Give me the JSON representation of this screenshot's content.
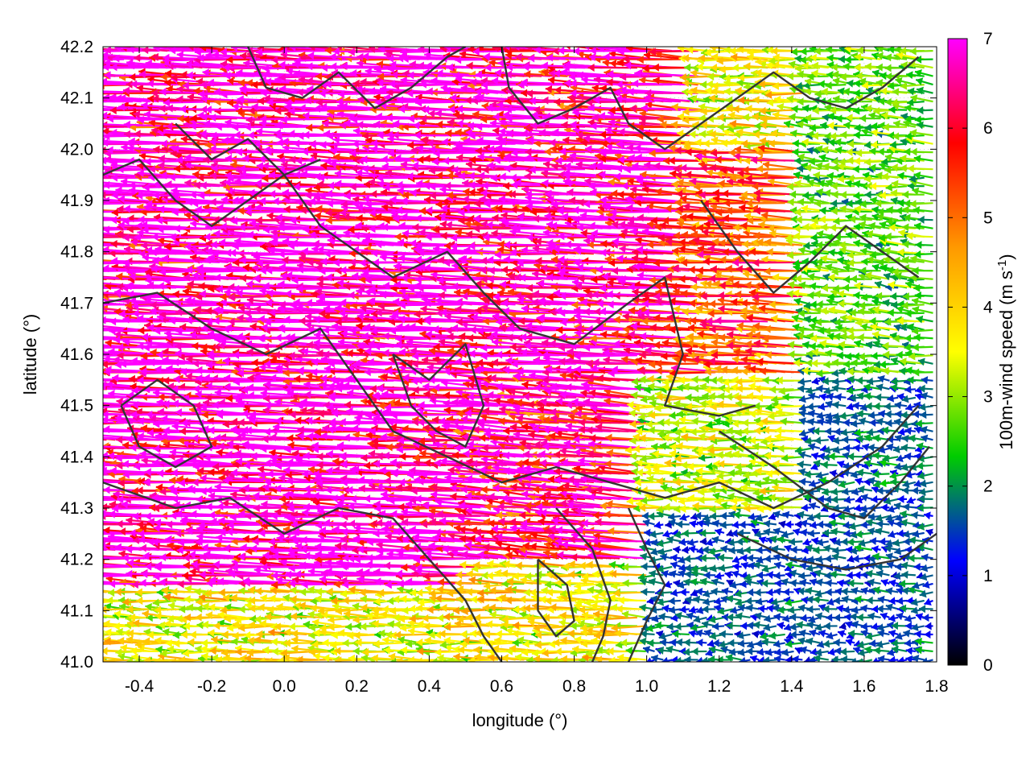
{
  "chart_data": {
    "type": "vector-field",
    "title": "",
    "xlabel": "longitude (°)",
    "ylabel": "latitude (°)",
    "xlim": [
      -0.5,
      1.8
    ],
    "ylim": [
      41.0,
      42.2
    ],
    "xticks": [
      "-0.4",
      "-0.2",
      "0.0",
      "0.2",
      "0.4",
      "0.6",
      "0.8",
      "1.0",
      "1.2",
      "1.4",
      "1.6",
      "1.8"
    ],
    "xtick_values": [
      -0.4,
      -0.2,
      0.0,
      0.2,
      0.4,
      0.6,
      0.8,
      1.0,
      1.2,
      1.4,
      1.6,
      1.8
    ],
    "yticks": [
      "41.0",
      "41.1",
      "41.2",
      "41.3",
      "41.4",
      "41.5",
      "41.6",
      "41.7",
      "41.8",
      "41.9",
      "42.0",
      "42.1",
      "42.2"
    ],
    "ytick_values": [
      41.0,
      41.1,
      41.2,
      41.3,
      41.4,
      41.5,
      41.6,
      41.7,
      41.8,
      41.9,
      42.0,
      42.1,
      42.2
    ],
    "grid": true,
    "colorbar": {
      "label": "100m-wind speed (m s",
      "label_sup": "-1",
      "label_end": ")",
      "range": [
        0,
        7
      ],
      "ticks": [
        "0",
        "1",
        "2",
        "3",
        "4",
        "5",
        "6",
        "7"
      ],
      "tick_values": [
        0,
        1,
        2,
        3,
        4,
        5,
        6,
        7
      ],
      "colors": [
        "#000000",
        "#0000ff",
        "#00cc00",
        "#ffff00",
        "#ff9900",
        "#ff0000",
        "#ff00ff"
      ]
    },
    "wind_field_regions": [
      {
        "lon_range": [
          -0.5,
          0.55
        ],
        "lat_range": [
          41.15,
          42.2
        ],
        "u": -6.8,
        "v": 0.25,
        "speed": 7
      },
      {
        "lon_range": [
          0.55,
          1.15
        ],
        "lat_range": [
          41.55,
          42.2
        ],
        "u": -6.5,
        "v": 0.3,
        "speed": 7
      },
      {
        "lon_range": [
          0.55,
          1.0
        ],
        "lat_range": [
          41.2,
          41.55
        ],
        "u": -6.2,
        "v": 0.5,
        "speed": 6.5
      },
      {
        "lon_range": [
          1.15,
          1.45
        ],
        "lat_range": [
          41.55,
          42.0
        ],
        "u": -5.2,
        "v": 0.3,
        "speed": 5.3
      },
      {
        "lon_range": [
          1.45,
          1.8
        ],
        "lat_range": [
          41.55,
          42.2
        ],
        "u": -2.6,
        "v": 0.2,
        "speed": 2.8
      },
      {
        "lon_range": [
          1.0,
          1.45
        ],
        "lat_range": [
          41.3,
          41.55
        ],
        "u": -3.2,
        "v": 0.1,
        "speed": 3.3
      },
      {
        "lon_range": [
          1.45,
          1.8
        ],
        "lat_range": [
          41.3,
          41.55
        ],
        "u": -1.6,
        "v": 0.0,
        "speed": 1.7
      },
      {
        "lon_range": [
          1.0,
          1.8
        ],
        "lat_range": [
          41.0,
          41.3
        ],
        "u": -1.5,
        "v": 0.0,
        "speed": 1.5
      },
      {
        "lon_range": [
          -0.5,
          0.55
        ],
        "lat_range": [
          41.0,
          41.15
        ],
        "u": -3.6,
        "v": 0.1,
        "speed": 3.8
      }
    ],
    "contour_lines": [
      [
        [
          -0.5,
          41.95
        ],
        [
          -0.4,
          41.98
        ],
        [
          -0.3,
          41.9
        ],
        [
          -0.2,
          41.85
        ],
        [
          -0.1,
          41.9
        ],
        [
          0.0,
          41.95
        ],
        [
          0.1,
          41.85
        ],
        [
          0.2,
          41.8
        ],
        [
          0.3,
          41.75
        ],
        [
          0.45,
          41.8
        ],
        [
          0.55,
          41.72
        ],
        [
          0.65,
          41.65
        ],
        [
          0.8,
          41.62
        ],
        [
          0.95,
          41.7
        ],
        [
          1.05,
          41.75
        ],
        [
          1.1,
          41.6
        ],
        [
          1.05,
          41.5
        ],
        [
          1.2,
          41.48
        ],
        [
          1.3,
          41.5
        ]
      ],
      [
        [
          -0.5,
          41.7
        ],
        [
          -0.35,
          41.72
        ],
        [
          -0.2,
          41.65
        ],
        [
          -0.05,
          41.6
        ],
        [
          0.1,
          41.65
        ],
        [
          0.2,
          41.55
        ],
        [
          0.3,
          41.45
        ],
        [
          0.45,
          41.4
        ],
        [
          0.6,
          41.35
        ],
        [
          0.75,
          41.38
        ],
        [
          0.9,
          41.35
        ],
        [
          1.05,
          41.32
        ],
        [
          1.2,
          41.35
        ],
        [
          1.35,
          41.3
        ],
        [
          1.5,
          41.35
        ],
        [
          1.65,
          41.42
        ],
        [
          1.75,
          41.5
        ]
      ],
      [
        [
          -0.5,
          41.35
        ],
        [
          -0.3,
          41.3
        ],
        [
          -0.15,
          41.32
        ],
        [
          0.0,
          41.25
        ],
        [
          0.15,
          41.3
        ],
        [
          0.3,
          41.28
        ],
        [
          0.4,
          41.2
        ],
        [
          0.5,
          41.12
        ],
        [
          0.55,
          41.05
        ],
        [
          0.6,
          41.0
        ]
      ],
      [
        [
          0.75,
          41.3
        ],
        [
          0.85,
          41.22
        ],
        [
          0.9,
          41.12
        ],
        [
          0.88,
          41.05
        ],
        [
          0.85,
          41.0
        ]
      ],
      [
        [
          0.95,
          41.3
        ],
        [
          1.0,
          41.22
        ],
        [
          1.05,
          41.15
        ],
        [
          1.0,
          41.08
        ],
        [
          0.95,
          41.0
        ]
      ],
      [
        [
          1.2,
          41.45
        ],
        [
          1.35,
          41.38
        ],
        [
          1.5,
          41.3
        ],
        [
          1.6,
          41.28
        ],
        [
          1.7,
          41.35
        ],
        [
          1.78,
          41.42
        ]
      ],
      [
        [
          1.25,
          41.25
        ],
        [
          1.4,
          41.2
        ],
        [
          1.55,
          41.18
        ],
        [
          1.7,
          41.2
        ],
        [
          1.8,
          41.25
        ]
      ],
      [
        [
          0.6,
          42.2
        ],
        [
          0.62,
          42.12
        ],
        [
          0.7,
          42.05
        ],
        [
          0.8,
          42.08
        ],
        [
          0.9,
          42.12
        ],
        [
          0.95,
          42.05
        ],
        [
          1.05,
          42.0
        ],
        [
          1.15,
          42.05
        ],
        [
          1.25,
          42.1
        ],
        [
          1.35,
          42.15
        ],
        [
          1.45,
          42.1
        ],
        [
          1.55,
          42.08
        ],
        [
          1.65,
          42.12
        ],
        [
          1.75,
          42.18
        ]
      ],
      [
        [
          -0.1,
          42.2
        ],
        [
          -0.05,
          42.12
        ],
        [
          0.05,
          42.1
        ],
        [
          0.15,
          42.15
        ],
        [
          0.25,
          42.08
        ],
        [
          0.35,
          42.12
        ],
        [
          0.45,
          42.18
        ],
        [
          0.5,
          42.2
        ]
      ],
      [
        [
          -0.3,
          42.05
        ],
        [
          -0.2,
          41.98
        ],
        [
          -0.1,
          42.02
        ],
        [
          0.0,
          41.95
        ],
        [
          0.1,
          41.98
        ]
      ],
      [
        [
          1.15,
          41.9
        ],
        [
          1.25,
          41.8
        ],
        [
          1.35,
          41.72
        ],
        [
          1.45,
          41.78
        ],
        [
          1.55,
          41.85
        ],
        [
          1.65,
          41.8
        ],
        [
          1.75,
          41.75
        ]
      ],
      [
        [
          0.3,
          41.6
        ],
        [
          0.4,
          41.55
        ],
        [
          0.5,
          41.62
        ],
        [
          0.55,
          41.5
        ],
        [
          0.5,
          41.42
        ],
        [
          0.42,
          41.45
        ],
        [
          0.35,
          41.5
        ],
        [
          0.3,
          41.6
        ]
      ],
      [
        [
          -0.45,
          41.5
        ],
        [
          -0.35,
          41.55
        ],
        [
          -0.25,
          41.5
        ],
        [
          -0.2,
          41.42
        ],
        [
          -0.3,
          41.38
        ],
        [
          -0.4,
          41.42
        ],
        [
          -0.45,
          41.5
        ]
      ],
      [
        [
          0.7,
          41.2
        ],
        [
          0.78,
          41.15
        ],
        [
          0.8,
          41.08
        ],
        [
          0.75,
          41.05
        ],
        [
          0.7,
          41.1
        ],
        [
          0.7,
          41.2
        ]
      ]
    ]
  }
}
